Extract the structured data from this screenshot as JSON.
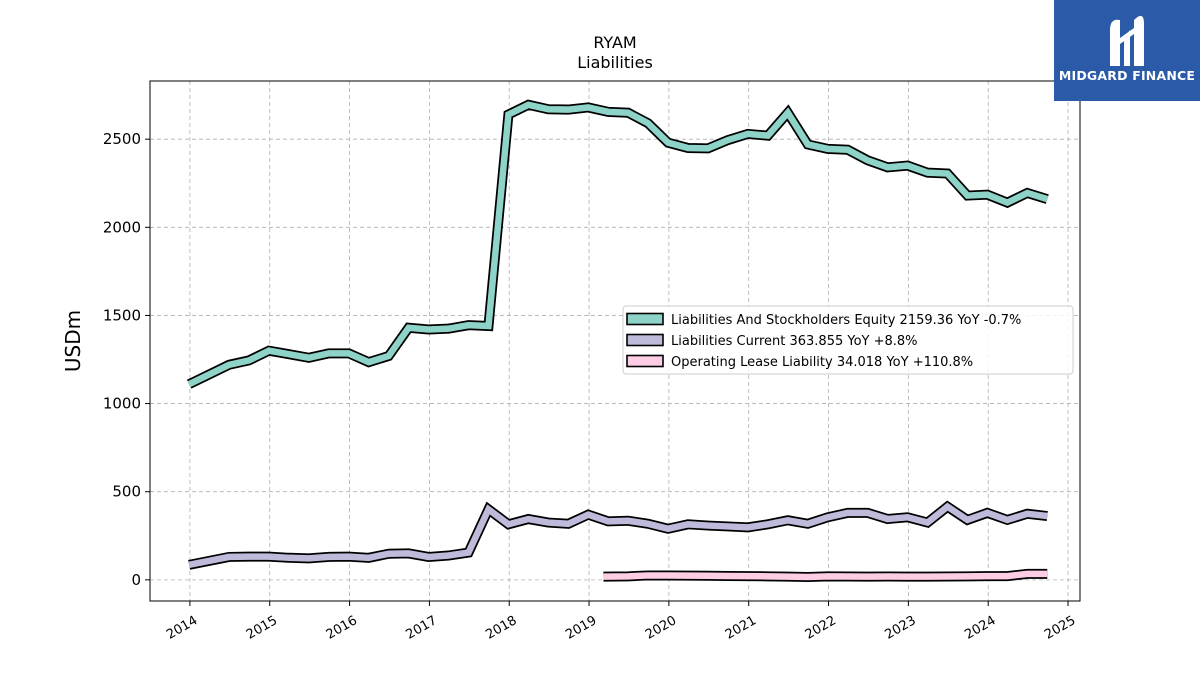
{
  "chart_data": {
    "type": "line",
    "title": "RYAM",
    "subtitle": "Liabilities",
    "xlabel": "",
    "ylabel": "USDm",
    "xlim": [
      2013.5,
      2025.15
    ],
    "ylim": [
      -120,
      2830
    ],
    "x_ticks": [
      "2014",
      "2015",
      "2016",
      "2017",
      "2018",
      "2019",
      "2020",
      "2021",
      "2022",
      "2023",
      "2024",
      "2025"
    ],
    "y_ticks": [
      "0",
      "500",
      "1000",
      "1500",
      "2000",
      "2500"
    ],
    "grid": true,
    "legend_position": "center-right",
    "series": [
      {
        "name": "Liabilities And Stockholders Equity",
        "legend_label": "Liabilities And Stockholders Equity  2159.36 YoY -0.7%",
        "color": "#8dd3c7",
        "x": [
          2013.99,
          2014.49,
          2014.74,
          2014.99,
          2015.24,
          2015.49,
          2015.74,
          2015.99,
          2016.24,
          2016.49,
          2016.74,
          2016.99,
          2017.24,
          2017.49,
          2017.74,
          2017.99,
          2018.24,
          2018.49,
          2018.74,
          2018.99,
          2019.24,
          2019.49,
          2019.74,
          2019.99,
          2020.24,
          2020.49,
          2020.74,
          2020.99,
          2021.24,
          2021.49,
          2021.74,
          2021.99,
          2022.24,
          2022.49,
          2022.74,
          2022.99,
          2023.24,
          2023.49,
          2023.74,
          2023.99,
          2024.24,
          2024.49,
          2024.74
        ],
        "values": [
          1110,
          1220,
          1245,
          1300,
          1280,
          1260,
          1285,
          1285,
          1235,
          1270,
          1430,
          1420,
          1425,
          1445,
          1440,
          2640,
          2695,
          2670,
          2668,
          2680,
          2655,
          2650,
          2590,
          2480,
          2450,
          2448,
          2495,
          2530,
          2520,
          2650,
          2470,
          2445,
          2440,
          2380,
          2340,
          2350,
          2310,
          2305,
          2180,
          2185,
          2140,
          2195,
          2160
        ]
      },
      {
        "name": "Liabilities Current",
        "legend_label": "Liabilities Current  363.855 YoY +8.8%",
        "color": "#bebada",
        "x": [
          2013.99,
          2014.49,
          2014.74,
          2014.99,
          2015.24,
          2015.49,
          2015.74,
          2015.99,
          2016.24,
          2016.49,
          2016.74,
          2016.99,
          2017.24,
          2017.49,
          2017.74,
          2017.99,
          2018.24,
          2018.49,
          2018.74,
          2018.99,
          2019.24,
          2019.49,
          2019.74,
          2019.99,
          2020.24,
          2020.49,
          2020.74,
          2020.99,
          2021.24,
          2021.49,
          2021.74,
          2021.99,
          2022.24,
          2022.49,
          2022.74,
          2022.99,
          2023.24,
          2023.49,
          2023.74,
          2023.99,
          2024.24,
          2024.49,
          2024.74
        ],
        "values": [
          85,
          130,
          132,
          132,
          125,
          122,
          130,
          132,
          125,
          148,
          150,
          130,
          138,
          155,
          400,
          315,
          345,
          325,
          318,
          370,
          332,
          335,
          318,
          290,
          315,
          308,
          303,
          298,
          315,
          338,
          318,
          355,
          380,
          380,
          345,
          355,
          325,
          415,
          340,
          380,
          340,
          375,
          362
        ]
      },
      {
        "name": "Operating Lease Liability",
        "legend_label": "Operating Lease Liability  34.018 YoY +110.8%",
        "color": "#fccde5",
        "x": [
          2019.18,
          2019.49,
          2019.74,
          2019.99,
          2020.24,
          2020.49,
          2020.74,
          2020.99,
          2021.24,
          2021.49,
          2021.74,
          2021.99,
          2022.24,
          2022.49,
          2022.74,
          2022.99,
          2023.24,
          2023.49,
          2023.74,
          2023.99,
          2024.24,
          2024.49,
          2024.74
        ],
        "values": [
          18,
          20,
          25,
          25,
          24,
          23,
          22,
          21,
          20,
          18,
          16,
          20,
          19,
          18,
          19,
          18,
          18,
          19,
          20,
          21,
          21,
          34,
          34
        ]
      }
    ]
  },
  "logo": {
    "text": "MIDGARD FINANCE",
    "background": "#2a5aa8"
  }
}
